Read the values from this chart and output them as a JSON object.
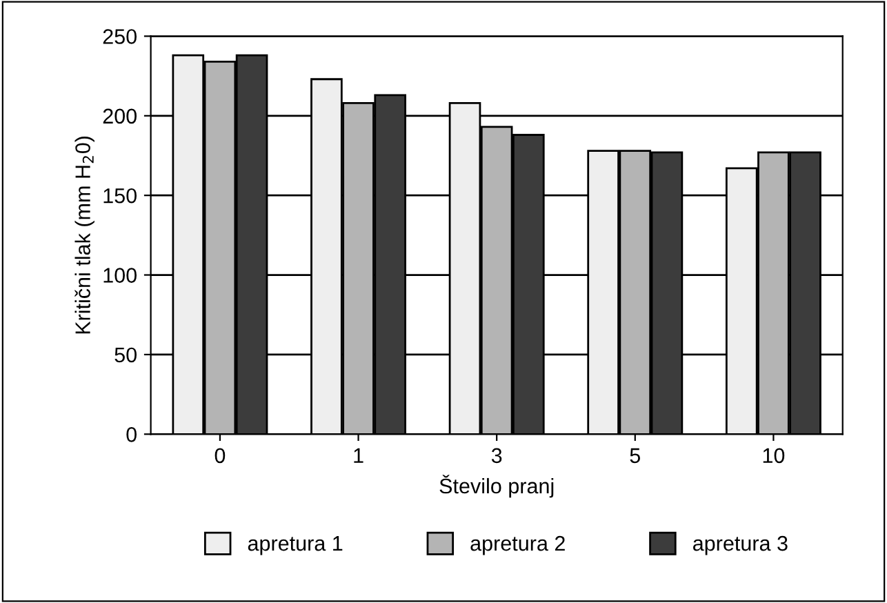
{
  "chart_data": {
    "type": "bar",
    "xlabel": "Število pranj",
    "ylabel": "Kritični tlak (mm H$_{2}$0)",
    "categories": [
      "0",
      "1",
      "3",
      "5",
      "10"
    ],
    "series": [
      {
        "name": "apretura 1",
        "color": "#eeeeee",
        "values": [
          238,
          223,
          208,
          178,
          167
        ]
      },
      {
        "name": "apretura 2",
        "color": "#b4b4b4",
        "values": [
          234,
          208,
          193,
          178,
          177
        ]
      },
      {
        "name": "apretura 3",
        "color": "#3c3c3c",
        "values": [
          238,
          213,
          188,
          177,
          177
        ]
      }
    ],
    "ylim": [
      0,
      250
    ],
    "yticks": [
      0,
      50,
      100,
      150,
      200,
      250
    ],
    "grid": "y",
    "legend": "bottom"
  }
}
